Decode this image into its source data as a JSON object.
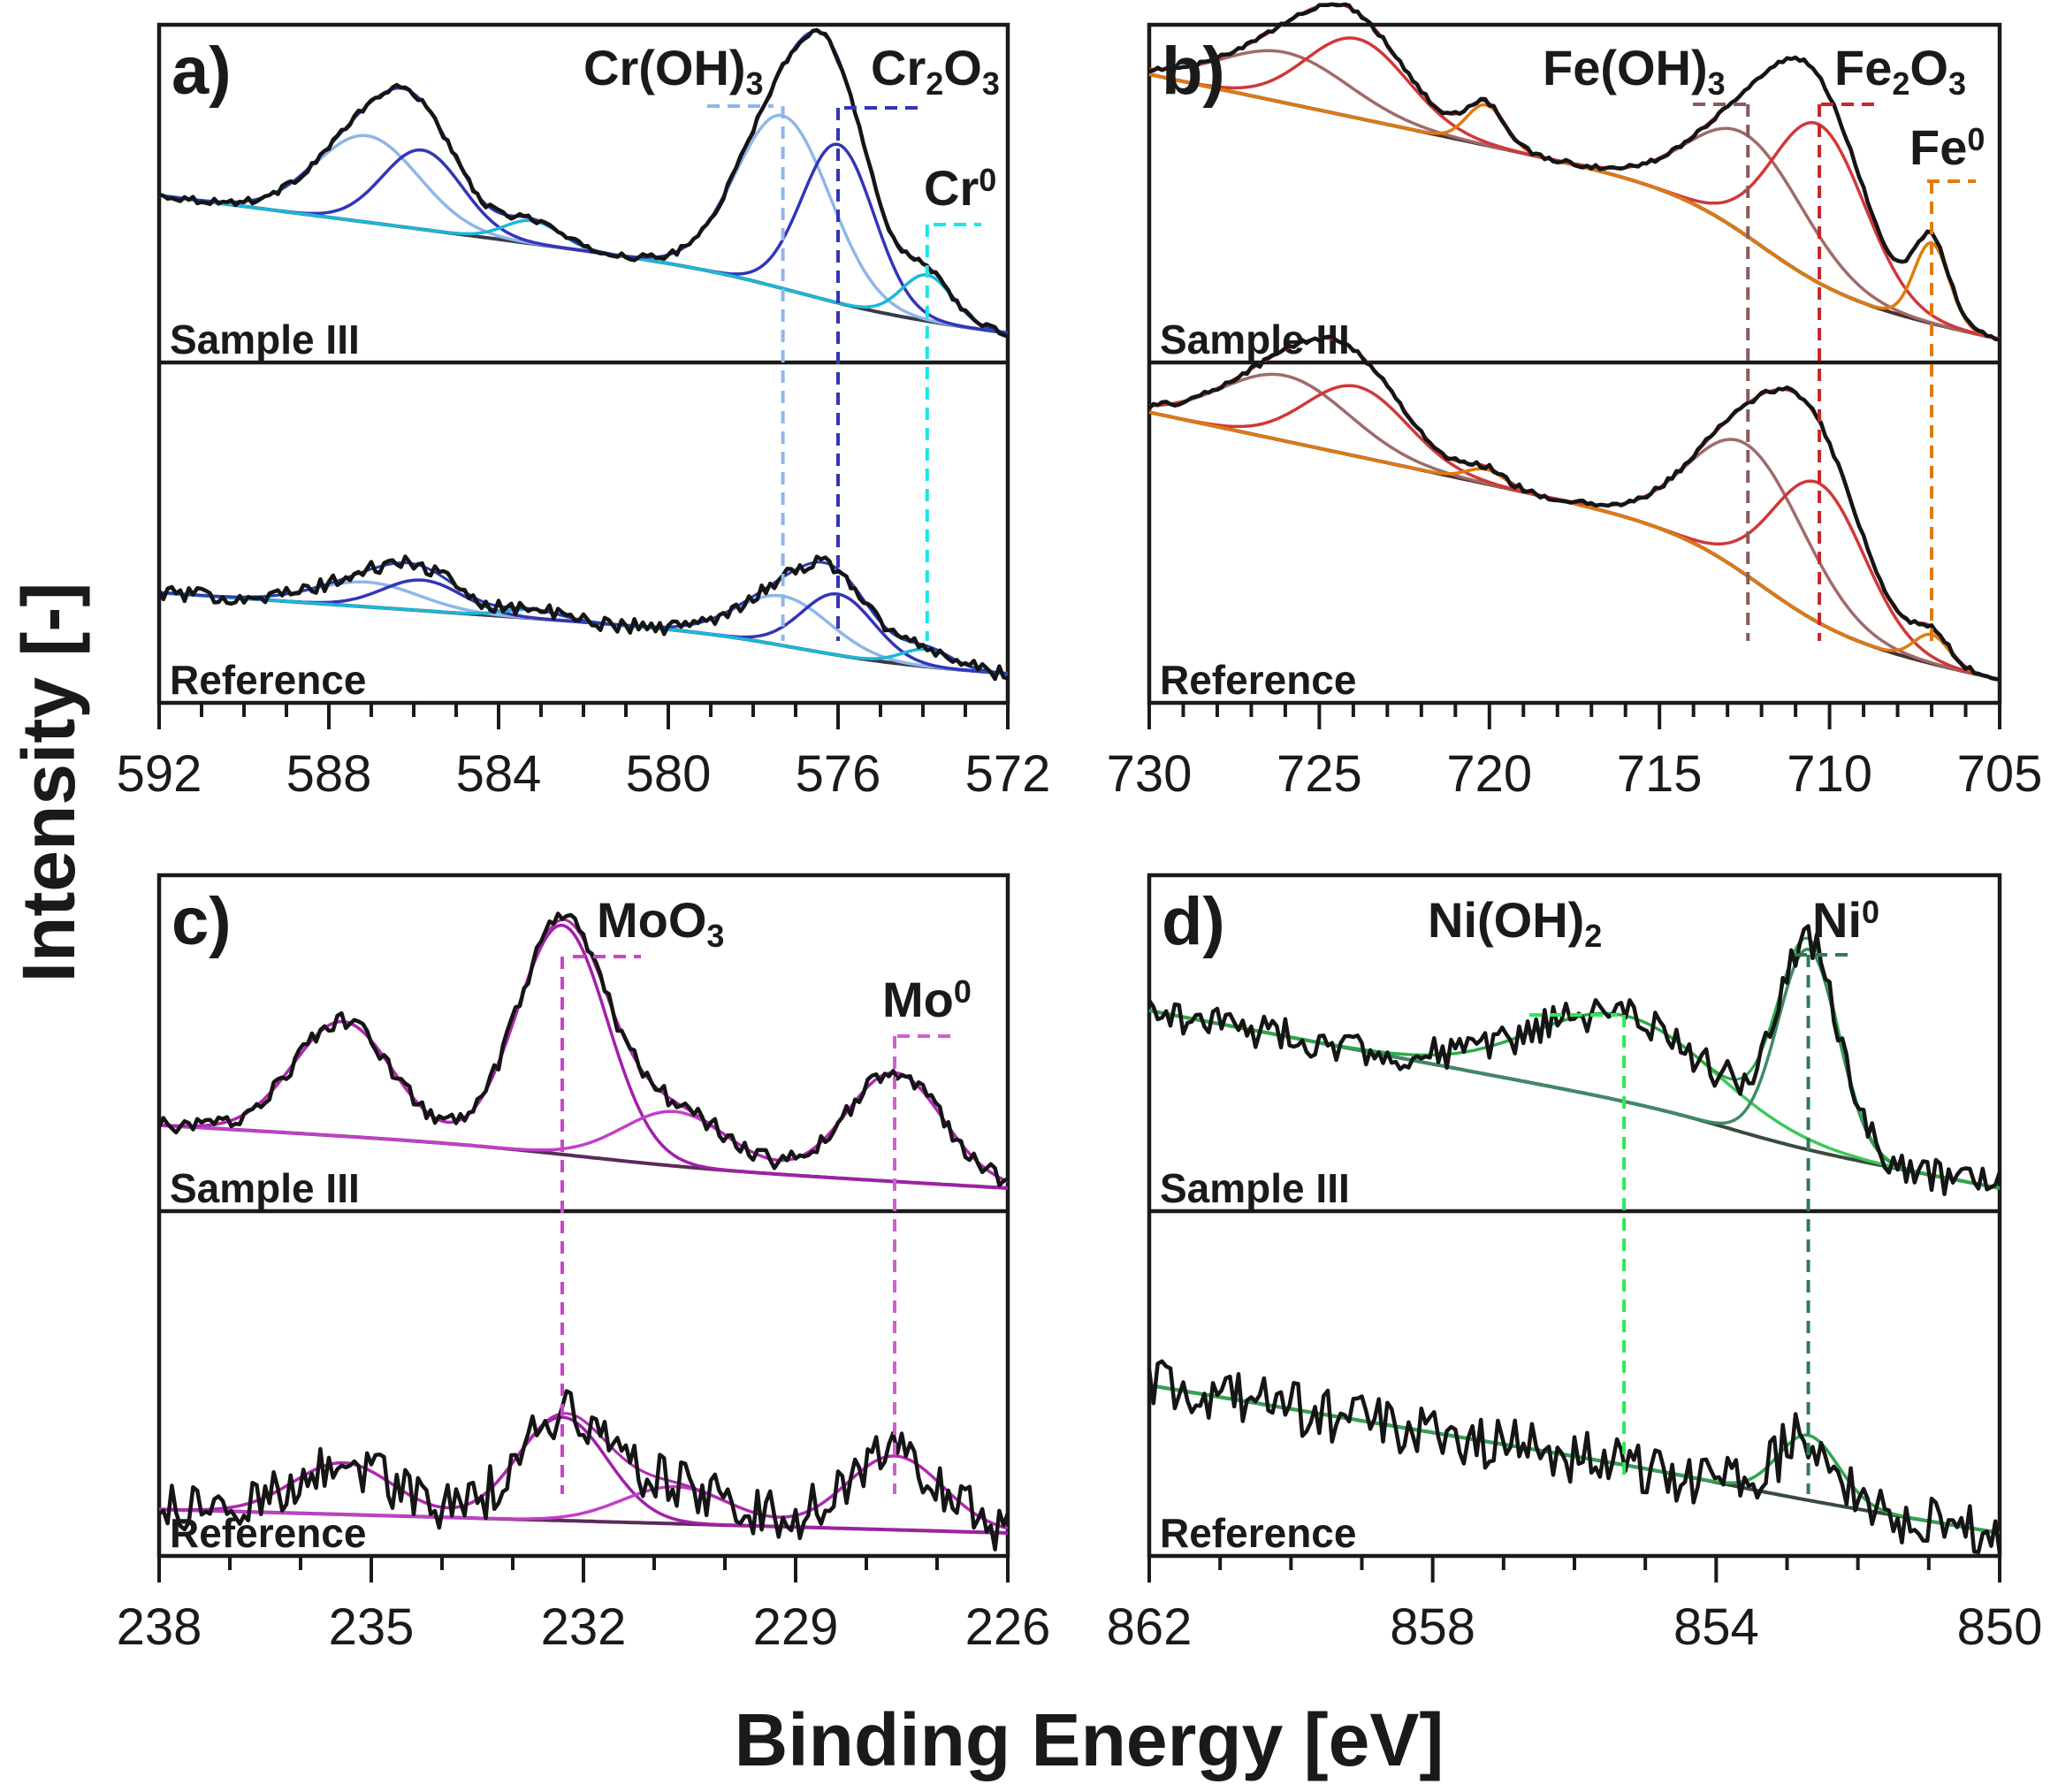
{
  "figure": {
    "xlabel": "Binding Energy [eV]",
    "ylabel": "Intensity [-]"
  },
  "chart_data": [
    {
      "id": "a",
      "type": "line",
      "panel_label": "a)",
      "element": "Cr",
      "xlim": [
        592,
        572
      ],
      "xticks": [
        592,
        588,
        584,
        580,
        576,
        572
      ],
      "tick_labels": [
        "592",
        "588",
        "584",
        "580",
        "576",
        "572"
      ],
      "minor_step": 1,
      "color": "#2a3bb0",
      "background_color": "#3a3a48",
      "components": [
        {
          "name": "Cr(OH)3",
          "label_main": "Cr(OH)",
          "label_sub": "3",
          "position": 577.3,
          "fwhm": 2.6,
          "color": "#8fb6e8",
          "line_color": "#8fb6e8",
          "height_top": 0.6,
          "height_bottom": 0.17,
          "doublet_split": 9.8
        },
        {
          "name": "Cr2O3",
          "label_main": "Cr",
          "label_sub": "2",
          "label_main2": "O",
          "label_sub2": "3",
          "position": 576.0,
          "fwhm": 2.0,
          "color": "#3434b8",
          "line_color": "#3434b8",
          "height_top": 0.55,
          "height_bottom": 0.21,
          "doublet_split": 9.8
        },
        {
          "name": "Cr0",
          "label_main": "Cr",
          "label_sup": "0",
          "position": 573.9,
          "fwhm": 1.4,
          "color": "#1ab8d8",
          "line_color": "#19e6e6",
          "height_top": 0.16,
          "height_bottom": 0.06,
          "doublet_split": 9.3
        }
      ],
      "spectra": [
        {
          "name": "Sample III",
          "label": "Sample III",
          "background": {
            "left": 0.5,
            "right": 0.02,
            "step_center": 577.0,
            "step_width": 2.5,
            "step": 0.1
          },
          "noise": 0.012
        },
        {
          "name": "Reference",
          "label": "Reference",
          "background": {
            "left": 0.3,
            "right": 0.02,
            "step_center": 577.0,
            "step_width": 2.5,
            "step": 0.08
          },
          "noise": 0.025
        }
      ]
    },
    {
      "id": "b",
      "type": "line",
      "panel_label": "b)",
      "element": "Fe",
      "xlim": [
        730,
        705
      ],
      "xticks": [
        730,
        725,
        720,
        715,
        710,
        705
      ],
      "tick_labels": [
        "730",
        "725",
        "720",
        "715",
        "710",
        "705"
      ],
      "minor_step": 1,
      "color": "#c63030",
      "background_color": "#4a3030",
      "components": [
        {
          "name": "Fe(OH)3",
          "label_main": "Fe(OH)",
          "label_sub": "3",
          "position": 712.4,
          "fwhm": 4.0,
          "color": "#a06a6a",
          "line_color": "#8a5a5a",
          "height_top": 0.35,
          "height_bottom": 0.45,
          "doublet_split": 13.6
        },
        {
          "name": "Fe2O3",
          "label_main": "Fe",
          "label_sub": "2",
          "label_main2": "O",
          "label_sub2": "3",
          "position": 710.3,
          "fwhm": 3.2,
          "color": "#d03838",
          "line_color": "#c62828",
          "height_top": 0.55,
          "height_bottom": 0.48,
          "doublet_split": 13.6
        },
        {
          "name": "Fe0",
          "label_main": "Fe",
          "label_sup": "0",
          "position": 707.0,
          "fwhm": 1.2,
          "color": "#e07a10",
          "line_color": "#e07a10",
          "height_top": 0.28,
          "height_bottom": 0.1,
          "doublet_split": 13.1
        }
      ],
      "spectra": [
        {
          "name": "Sample III",
          "label": "Sample III",
          "background": {
            "left": 0.92,
            "right": 0.0,
            "step_center": 712.0,
            "step_width": 2.6,
            "step": 0.3
          },
          "noise": 0.008
        },
        {
          "name": "Reference",
          "label": "Reference",
          "background": {
            "left": 0.92,
            "right": 0.0,
            "step_center": 712.0,
            "step_width": 2.6,
            "step": 0.3
          },
          "noise": 0.01
        }
      ]
    },
    {
      "id": "c",
      "type": "line",
      "panel_label": "c)",
      "element": "Mo",
      "xlim": [
        238,
        226
      ],
      "xticks": [
        238,
        235,
        232,
        229,
        226
      ],
      "tick_labels": [
        "238",
        "235",
        "232",
        "229",
        "226"
      ],
      "minor_step": 1,
      "color": "#b02ab0",
      "background_color": "#5a2a5a",
      "components": [
        {
          "name": "MoO3",
          "label_main": "MoO",
          "label_sub": "3",
          "position": 232.3,
          "fwhm": 1.5,
          "color": "#a020a8",
          "line_color": "#cc44cc",
          "height_top": 0.8,
          "height_bottom": 0.35,
          "doublet_split": 3.1
        },
        {
          "name": "Mo0",
          "label_main": "Mo",
          "label_sup": "0",
          "position": 227.6,
          "fwhm": 1.6,
          "color": "#c040c8",
          "line_color": "#d060d0",
          "height_top": 0.38,
          "height_bottom": 0.25,
          "doublet_split": 3.1
        }
      ],
      "spectra": [
        {
          "name": "Sample III",
          "label": "Sample III",
          "background": {
            "left": 0.22,
            "right": 0.0,
            "step_center": 232.0,
            "step_width": 2.0,
            "step": 0.05
          },
          "noise": 0.03
        },
        {
          "name": "Reference",
          "label": "Reference",
          "background": {
            "left": 0.08,
            "right": 0.0,
            "step_center": 232.0,
            "step_width": 2.0,
            "step": 0.0
          },
          "noise": 0.085
        }
      ]
    },
    {
      "id": "d",
      "type": "line",
      "panel_label": "d)",
      "element": "Ni",
      "xlim": [
        862,
        850
      ],
      "xticks": [
        862,
        858,
        854,
        850
      ],
      "tick_labels": [
        "862",
        "858",
        "854",
        "850"
      ],
      "minor_step": 1,
      "color": "#2ea84a",
      "background_color": "#3a4a3e",
      "components": [
        {
          "name": "Ni(OH)2",
          "label_main": "Ni(OH)",
          "label_sub": "2",
          "position": 855.3,
          "fwhm": 3.0,
          "color": "#3cc85a",
          "line_color": "#2ee85a",
          "height_top": 0.3,
          "height_bottom": 0.0,
          "doublet_split": 0
        },
        {
          "name": "Ni0",
          "label_main": "Ni",
          "label_sup": "0",
          "position": 852.7,
          "fwhm": 1.0,
          "color": "#3e8a66",
          "line_color": "#2f7a55",
          "height_top": 0.7,
          "height_bottom": 0.22,
          "doublet_split": 0
        }
      ],
      "spectra": [
        {
          "name": "Sample III",
          "label": "Sample III",
          "background": {
            "left": 0.62,
            "right": 0.0,
            "step_center": 853.8,
            "step_width": 1.2,
            "step": 0.06
          },
          "noise": 0.06
        },
        {
          "name": "Reference",
          "label": "Reference",
          "background": {
            "left": 0.5,
            "right": 0.0,
            "step_center": 853.8,
            "step_width": 1.2,
            "step": 0.02
          },
          "noise": 0.09
        }
      ]
    }
  ]
}
